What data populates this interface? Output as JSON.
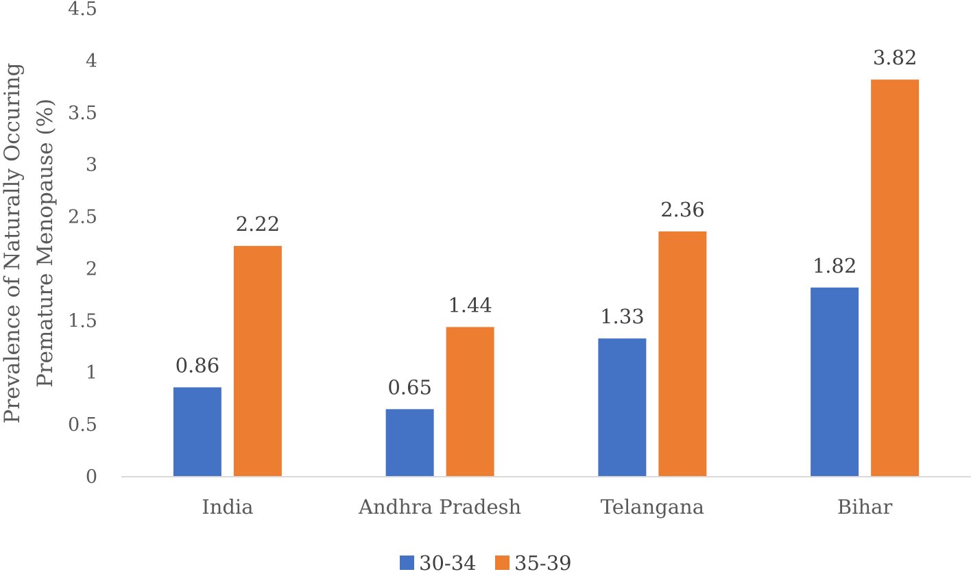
{
  "chart_data": {
    "type": "bar",
    "title": "",
    "xlabel": "",
    "ylabel_lines": [
      "Prevalence of Naturally Occuring",
      "Premature Menopause (%)"
    ],
    "categories": [
      "India",
      "Andhra Pradesh",
      "Telangana",
      "Bihar"
    ],
    "series": [
      {
        "name": "30-34",
        "color": "#4472C4",
        "values": [
          0.86,
          0.65,
          1.33,
          1.82
        ],
        "labels": [
          "0.86",
          "0.65",
          "1.33",
          "1.82"
        ]
      },
      {
        "name": "35-39",
        "color": "#ED7D31",
        "values": [
          2.22,
          1.44,
          2.36,
          3.82
        ],
        "labels": [
          "2.22",
          "1.44",
          "2.36",
          "3.82"
        ]
      }
    ],
    "ylim": [
      0,
      4.5
    ],
    "yticks": [
      0,
      0.5,
      1,
      1.5,
      2,
      2.5,
      3,
      3.5,
      4,
      4.5
    ],
    "ytick_labels": [
      "0",
      "0.5",
      "1",
      "1.5",
      "2",
      "2.5",
      "3",
      "3.5",
      "4",
      "4.5"
    ],
    "grid": false,
    "legend_position": "bottom-center",
    "axis_color": "#D9D9D9"
  }
}
